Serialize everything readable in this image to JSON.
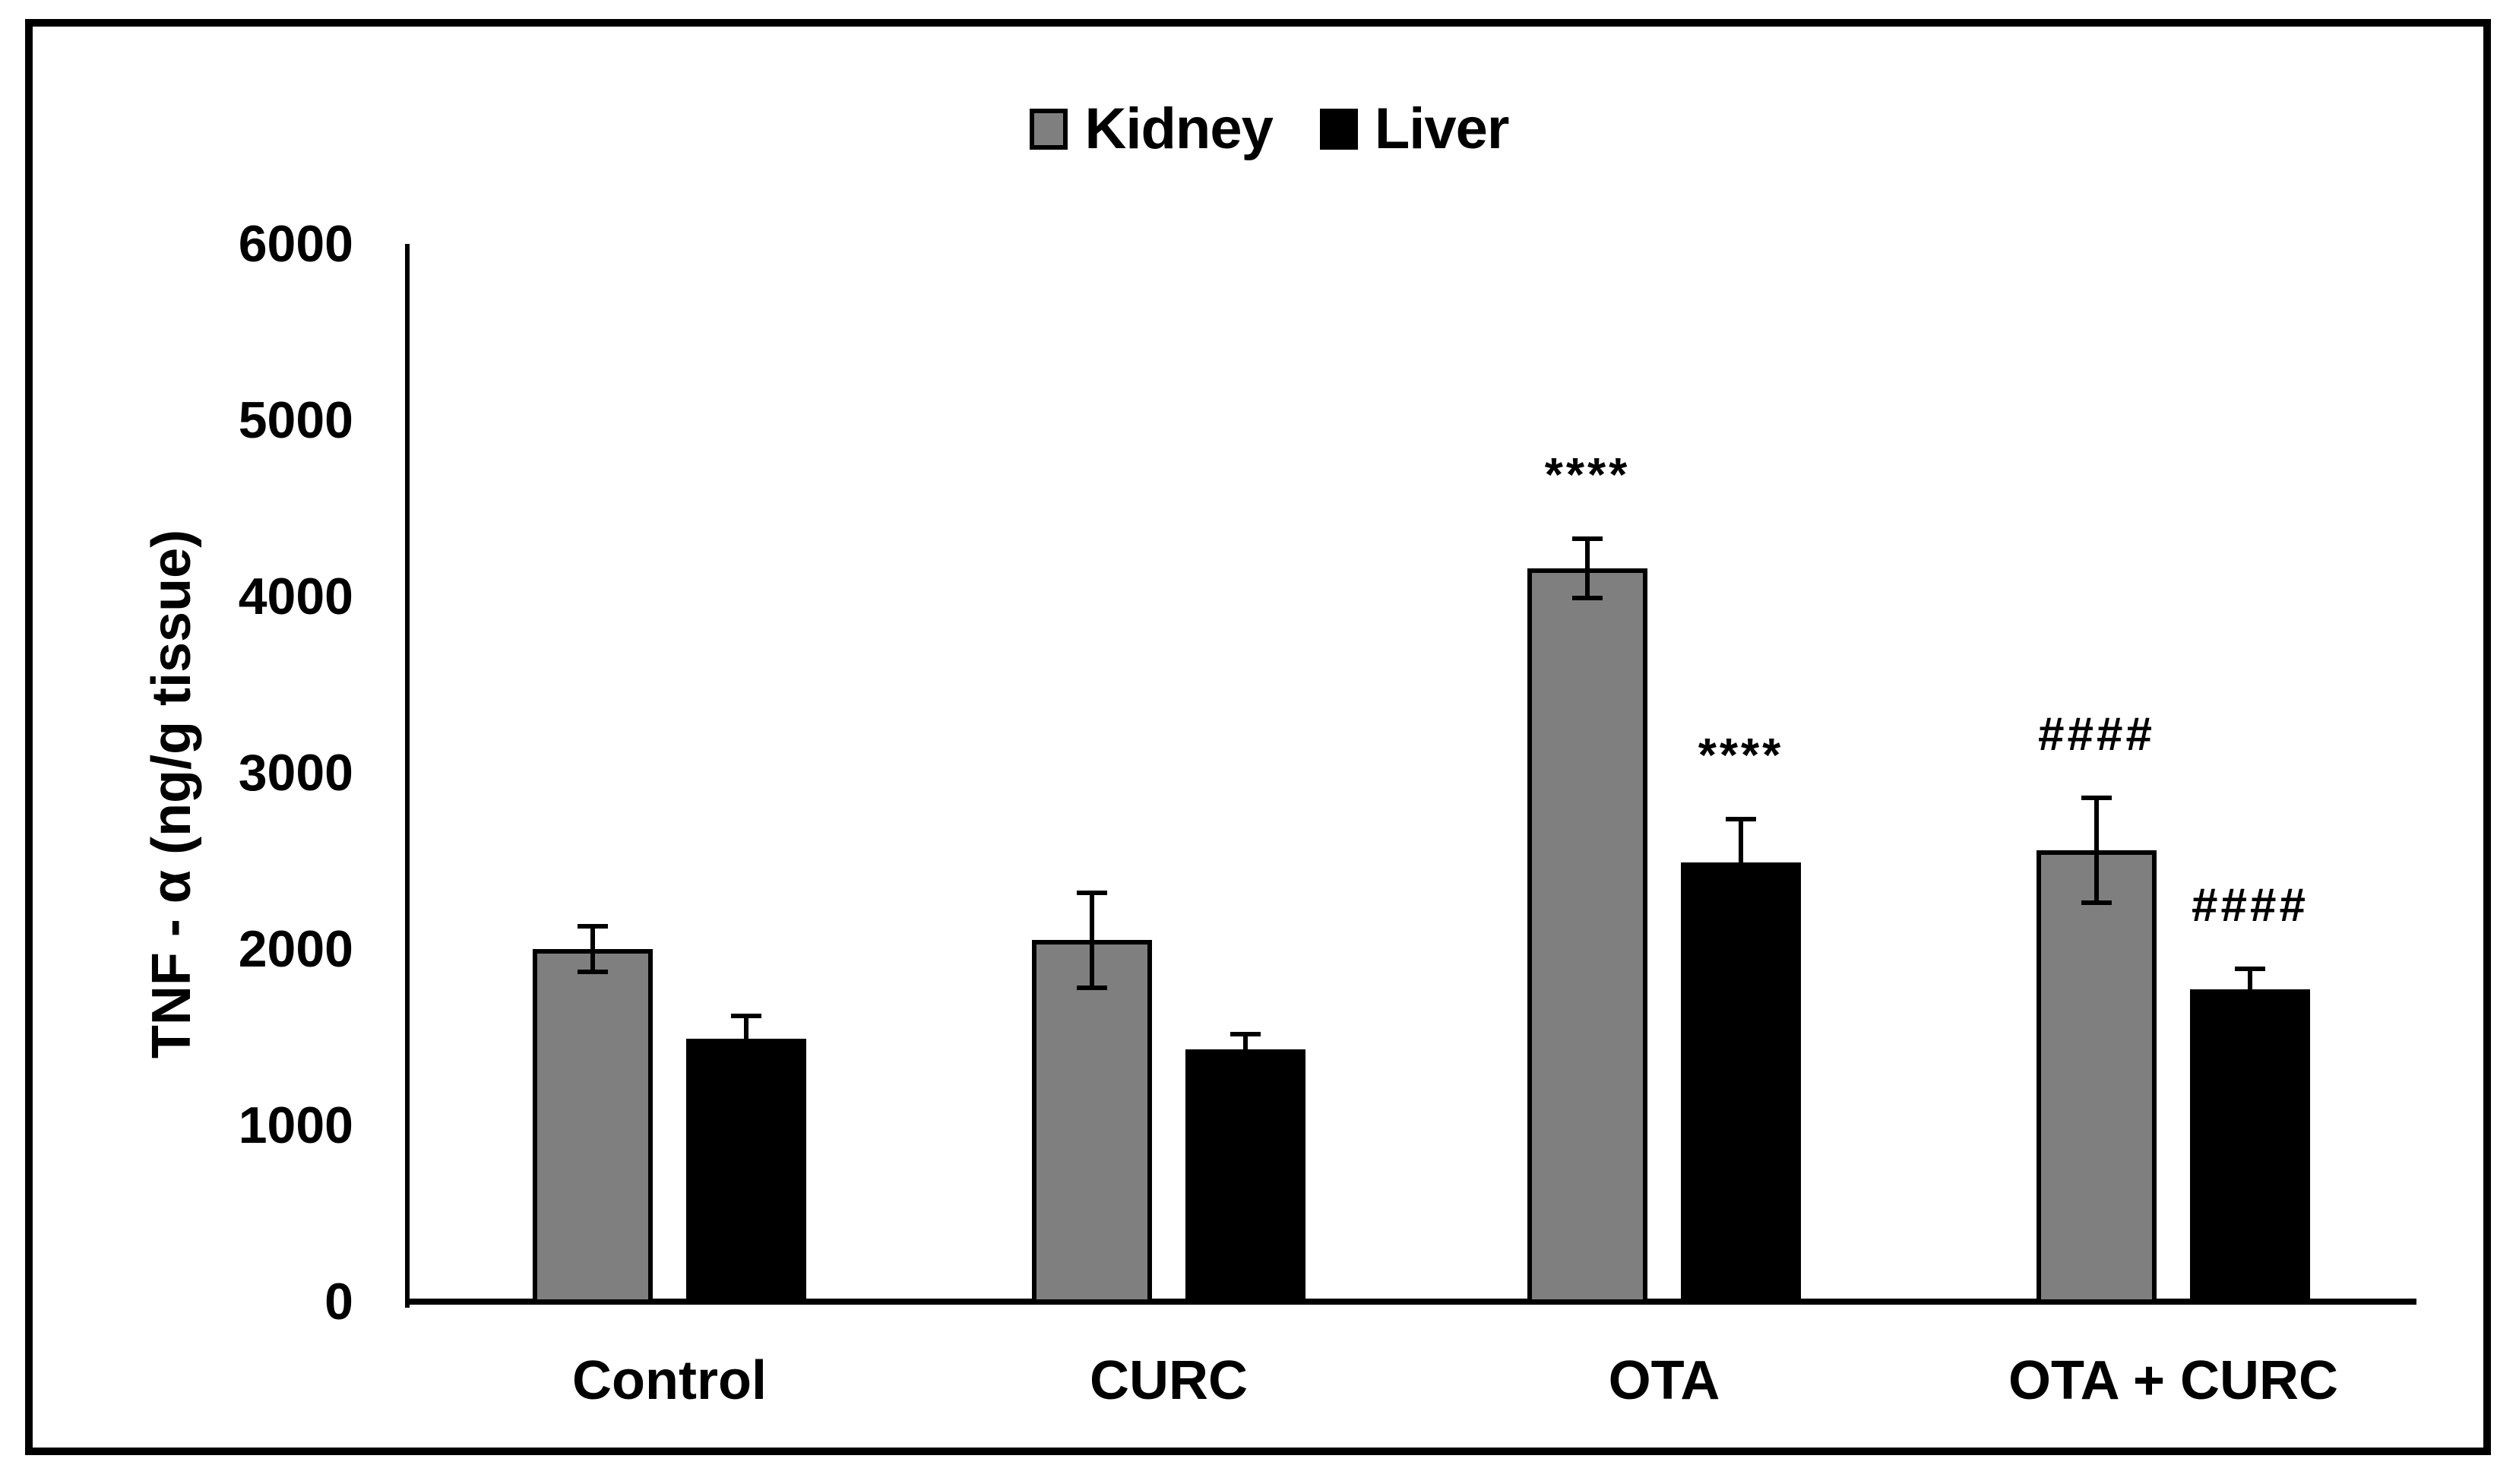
{
  "figure": {
    "background_color": "#ffffff",
    "frame_border_color": "#000000",
    "bar_outline_color": "#000000",
    "axis_color": "#000000",
    "text_color": "#000000"
  },
  "chart_data": {
    "type": "bar",
    "title": "",
    "xlabel": "",
    "ylabel": "TNF - α (ng/g tissue)",
    "ylim": [
      0,
      6000
    ],
    "yticks": [
      0,
      1000,
      2000,
      3000,
      4000,
      5000,
      6000
    ],
    "grid": false,
    "legend_position": "top-center",
    "categories": [
      "Control",
      "CURC",
      "OTA",
      "OTA + CURC"
    ],
    "series": [
      {
        "name": "Kidney",
        "color": "#7f7f7f",
        "values": [
          2000,
          2050,
          4160,
          2560
        ],
        "errors": [
          120,
          260,
          160,
          290
        ],
        "annotations": [
          "",
          "",
          "****",
          "####"
        ]
      },
      {
        "name": "Liver",
        "color": "#000000",
        "values": [
          1490,
          1430,
          2490,
          1770
        ],
        "errors": [
          120,
          80,
          240,
          110
        ],
        "annotations": [
          "",
          "",
          "****",
          "####"
        ]
      }
    ]
  }
}
